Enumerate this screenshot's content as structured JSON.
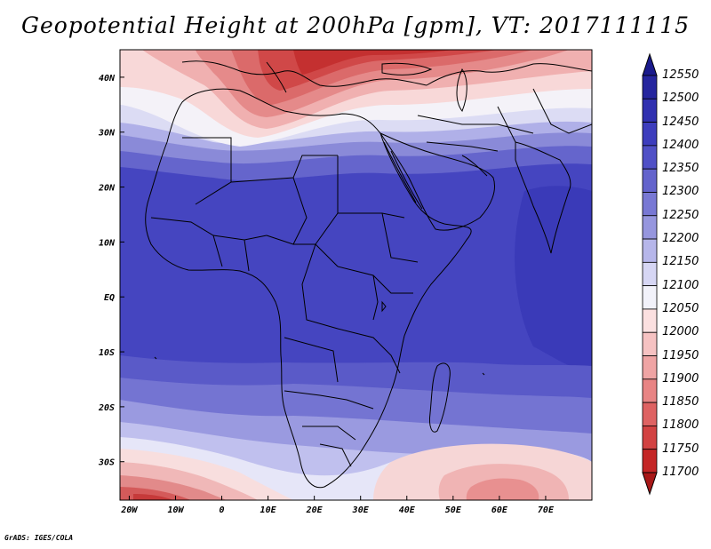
{
  "title": "Geopotential Height at 200hPa [gpm], VT: 2017111115",
  "credit": "GrADS: IGES/COLA",
  "map": {
    "lon_range": [
      -22,
      80
    ],
    "lat_range": [
      -37,
      45
    ],
    "x_ticks": [
      {
        "lon": -20,
        "label": "20W"
      },
      {
        "lon": -10,
        "label": "10W"
      },
      {
        "lon": 0,
        "label": "0"
      },
      {
        "lon": 10,
        "label": "10E"
      },
      {
        "lon": 20,
        "label": "20E"
      },
      {
        "lon": 30,
        "label": "30E"
      },
      {
        "lon": 40,
        "label": "40E"
      },
      {
        "lon": 50,
        "label": "50E"
      },
      {
        "lon": 60,
        "label": "60E"
      },
      {
        "lon": 70,
        "label": "70E"
      }
    ],
    "y_ticks": [
      {
        "lat": 40,
        "label": "40N"
      },
      {
        "lat": 30,
        "label": "30N"
      },
      {
        "lat": 20,
        "label": "20N"
      },
      {
        "lat": 10,
        "label": "10N"
      },
      {
        "lat": 0,
        "label": "EQ"
      },
      {
        "lat": -10,
        "label": "10S"
      },
      {
        "lat": -20,
        "label": "20S"
      },
      {
        "lat": -30,
        "label": "30S"
      }
    ]
  },
  "colorbar": {
    "labels": [
      "12550",
      "12500",
      "12450",
      "12400",
      "12350",
      "12300",
      "12250",
      "12200",
      "12150",
      "12100",
      "12050",
      "12000",
      "11950",
      "11900",
      "11850",
      "11800",
      "11750",
      "11700"
    ],
    "colors": [
      "#1a1a8c",
      "#25259e",
      "#3030b0",
      "#3d3dbd",
      "#5050c6",
      "#6363cc",
      "#7878d4",
      "#9696de",
      "#b6b6ea",
      "#d6d6f4",
      "#f2f2fa",
      "#fbe0e0",
      "#f6c2c2",
      "#efa4a4",
      "#e88484",
      "#de6262",
      "#d24242",
      "#c42626",
      "#a81818"
    ]
  }
}
